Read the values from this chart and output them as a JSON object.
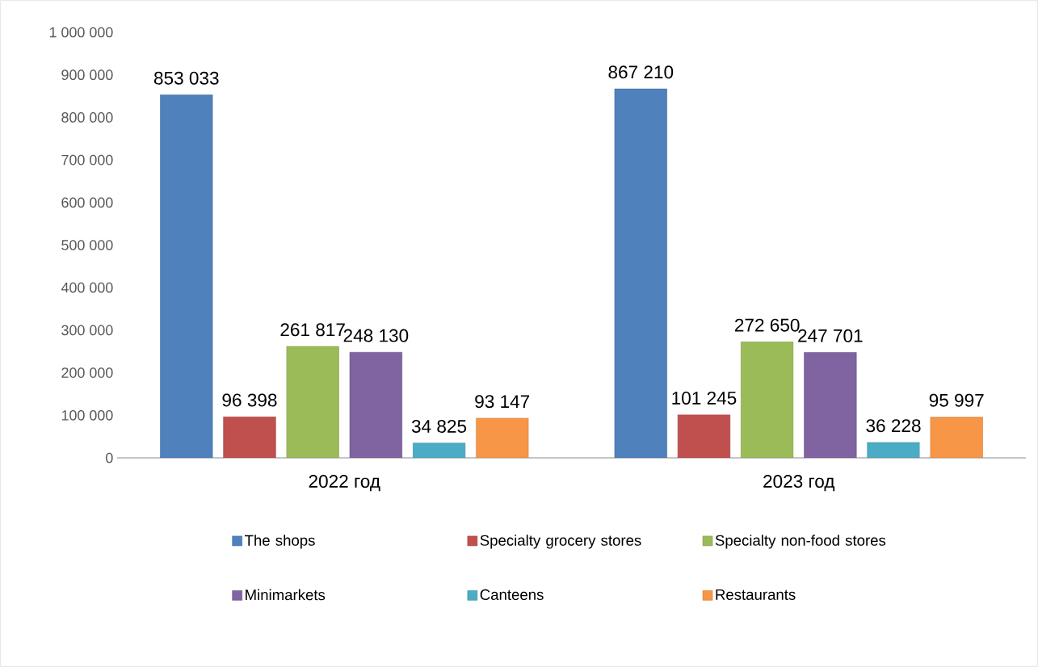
{
  "chart_data": {
    "type": "bar",
    "categories": [
      "2022 год",
      "2023 год"
    ],
    "series": [
      {
        "name": "The shops",
        "color": "#4f81bd",
        "values": [
          853033,
          867210
        ],
        "value_labels": [
          "853 033",
          "867 210"
        ]
      },
      {
        "name": "Specialty grocery stores",
        "color": "#c0504d",
        "values": [
          96398,
          101245
        ],
        "value_labels": [
          "96 398",
          "101 245"
        ]
      },
      {
        "name": "Specialty non-food stores",
        "color": "#9bbb59",
        "values": [
          261817,
          272650
        ],
        "value_labels": [
          "261 817",
          "272 650"
        ]
      },
      {
        "name": "Minimarkets",
        "color": "#8064a2",
        "values": [
          248130,
          247701
        ],
        "value_labels": [
          "248 130",
          "247 701"
        ]
      },
      {
        "name": "Canteens",
        "color": "#4bacc6",
        "values": [
          34825,
          36228
        ],
        "value_labels": [
          "34 825",
          "36 228"
        ]
      },
      {
        "name": "Restaurants",
        "color": "#f79646",
        "values": [
          93147,
          95997
        ],
        "value_labels": [
          "93 147",
          "95 997"
        ]
      }
    ],
    "ylim": [
      0,
      1000000
    ],
    "yticks": [
      {
        "value": 0,
        "label": "0"
      },
      {
        "value": 100000,
        "label": "100 000"
      },
      {
        "value": 200000,
        "label": "200 000"
      },
      {
        "value": 300000,
        "label": "300 000"
      },
      {
        "value": 400000,
        "label": "400 000"
      },
      {
        "value": 500000,
        "label": "500 000"
      },
      {
        "value": 600000,
        "label": "600 000"
      },
      {
        "value": 700000,
        "label": "700 000"
      },
      {
        "value": 800000,
        "label": "800 000"
      },
      {
        "value": 900000,
        "label": "900 000"
      },
      {
        "value": 1000000,
        "label": "1 000 000"
      }
    ],
    "grid": false,
    "legend": "bottom"
  }
}
